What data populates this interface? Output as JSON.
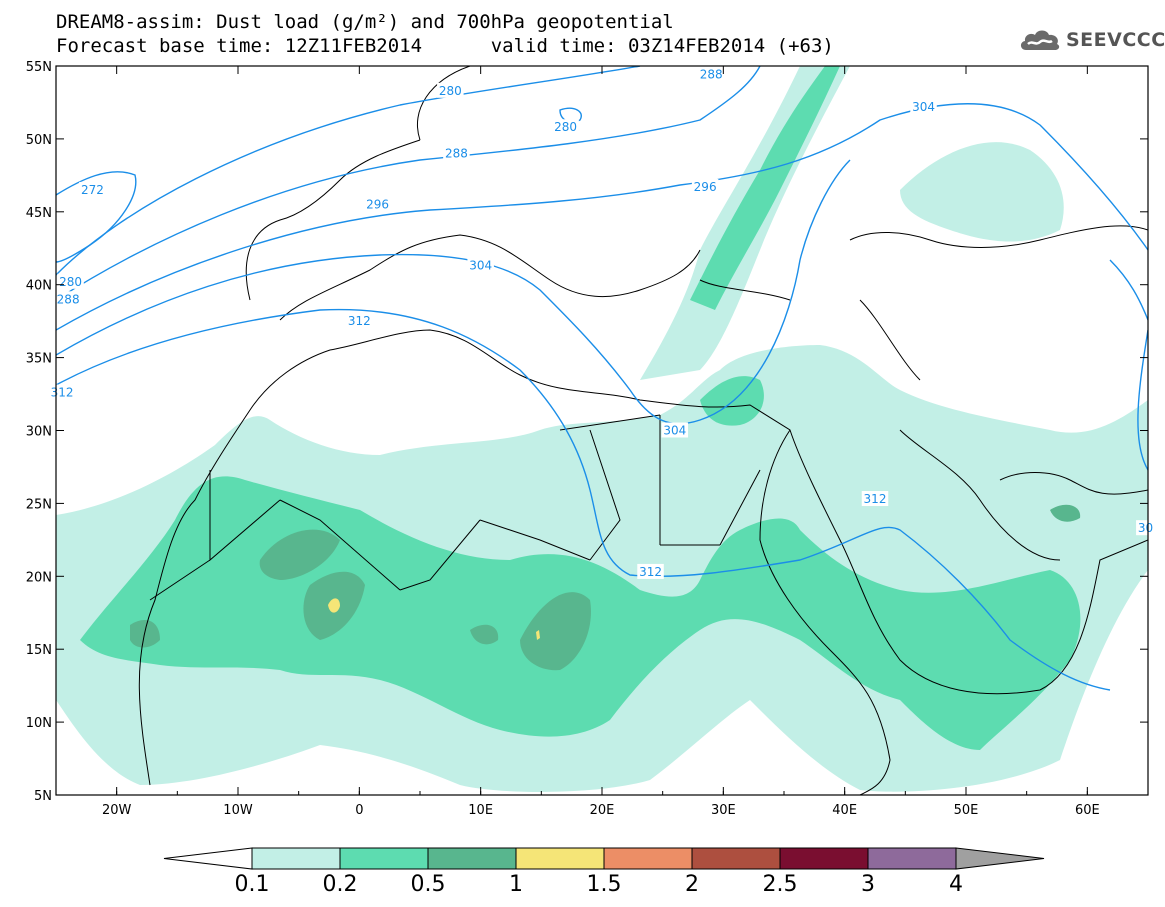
{
  "title": {
    "line1": "DREAM8-assim: Dust load (g/m²) and 700hPa geopotential",
    "base_time": "Forecast base time: 12Z11FEB2014",
    "valid_time": "valid time: 03Z14FEB2014 (+63)"
  },
  "logo": {
    "text": "SEEVCCC",
    "icon": "cloud-icon"
  },
  "map": {
    "lon_range": [
      -25,
      65
    ],
    "lat_range": [
      5,
      55
    ],
    "lat_ticks": [
      "55N",
      "50N",
      "45N",
      "40N",
      "35N",
      "30N",
      "25N",
      "20N",
      "15N",
      "10N",
      "5N"
    ],
    "lon_ticks": [
      "20W",
      "10W",
      "0",
      "10E",
      "20E",
      "30E",
      "40E",
      "50E",
      "60E"
    ],
    "contour_color": "#1b8ee8",
    "contour_labels": [
      {
        "text": "272",
        "lon": -22,
        "lat": 46.5
      },
      {
        "text": "280",
        "lon": -23.8,
        "lat": 40.2
      },
      {
        "text": "288",
        "lon": -24,
        "lat": 39
      },
      {
        "text": "312",
        "lon": -24.5,
        "lat": 32.6
      },
      {
        "text": "280",
        "lon": 7.5,
        "lat": 53.3
      },
      {
        "text": "280",
        "lon": 17,
        "lat": 50.8
      },
      {
        "text": "288",
        "lon": 8,
        "lat": 49
      },
      {
        "text": "288",
        "lon": 29,
        "lat": 54.4
      },
      {
        "text": "296",
        "lon": 1.5,
        "lat": 45.5
      },
      {
        "text": "296",
        "lon": 28.5,
        "lat": 46.7
      },
      {
        "text": "304",
        "lon": 10,
        "lat": 41.3
      },
      {
        "text": "304",
        "lon": 26,
        "lat": 30
      },
      {
        "text": "304",
        "lon": 46.5,
        "lat": 52.2
      },
      {
        "text": "312",
        "lon": 0,
        "lat": 37.5
      },
      {
        "text": "312",
        "lon": 24,
        "lat": 20.3
      },
      {
        "text": "312",
        "lon": 42.5,
        "lat": 25.3
      },
      {
        "text": "30",
        "lon": 64.8,
        "lat": 23.3
      }
    ]
  },
  "colorbar": {
    "labels": [
      "0.1",
      "0.2",
      "0.5",
      "1",
      "1.5",
      "2",
      "2.5",
      "3",
      "4"
    ],
    "colors": [
      "#ffffff",
      "#c2efe6",
      "#5ddcb0",
      "#58b68e",
      "#f5e577",
      "#ec8e66",
      "#ad4f3f",
      "#7a0e30",
      "#8e6a9b",
      "#a0a0a0"
    ]
  },
  "dust_colors": {
    "low": "#c2efe6",
    "mid": "#5ddcb0",
    "high": "#58b68e",
    "peak": "#f5e577"
  }
}
